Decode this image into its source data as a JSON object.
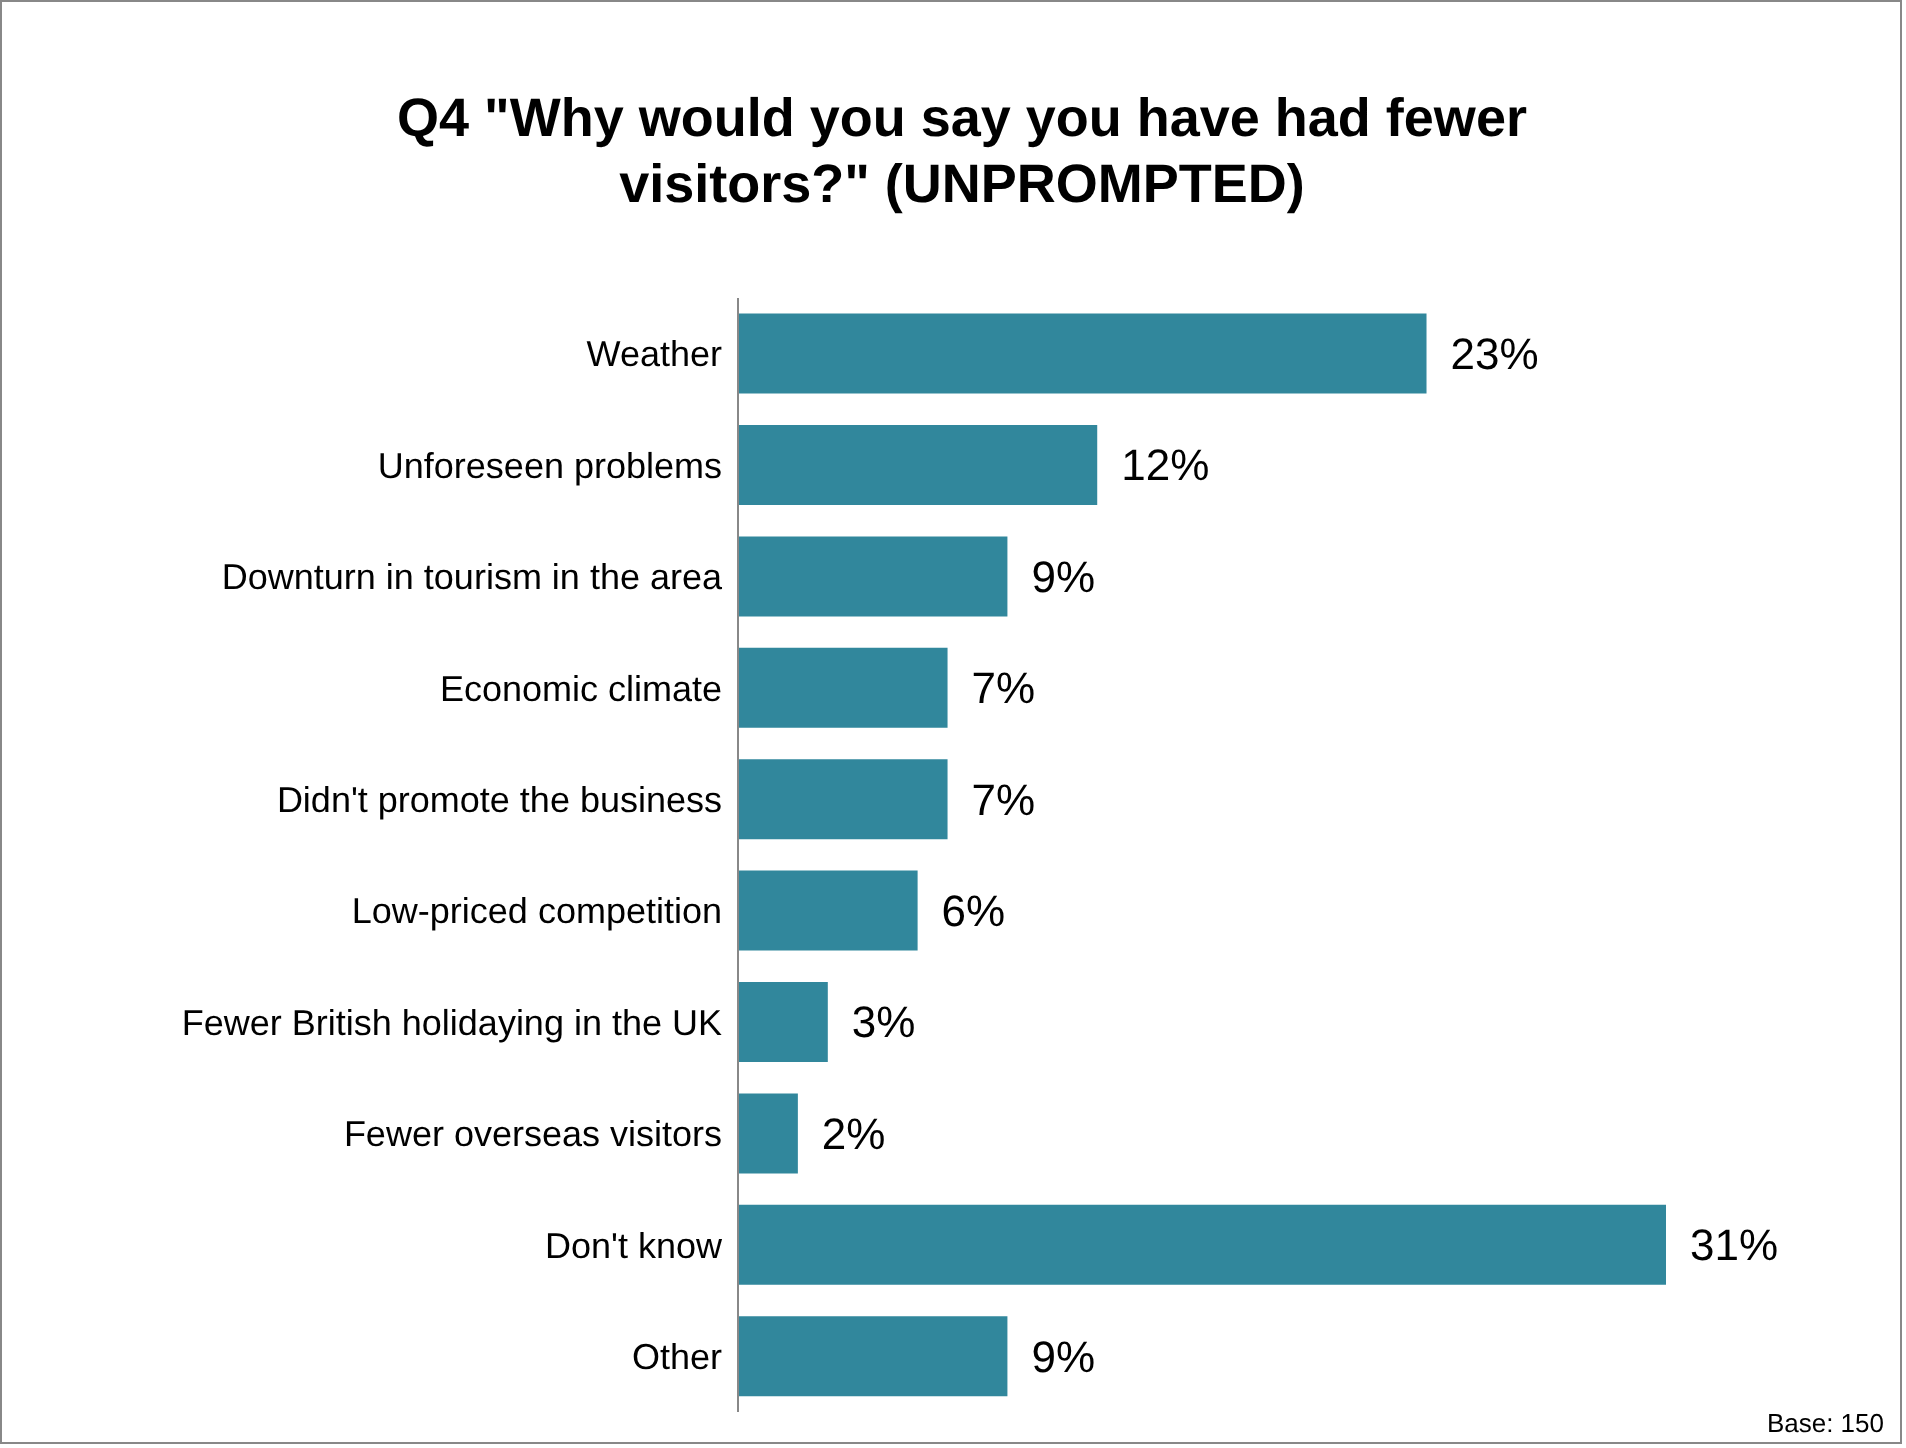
{
  "chart_data": {
    "type": "bar",
    "orientation": "horizontal",
    "title": "Q4 \"Why would you say you have had fewer visitors?\" (UNPROMPTED)",
    "categories": [
      "Weather",
      "Unforeseen problems",
      "Downturn in tourism in the area",
      "Economic climate",
      "Didn't promote the business",
      "Low-priced competition",
      "Fewer British holidaying in the UK",
      "Fewer overseas visitors",
      "Don't know",
      "Other"
    ],
    "values": [
      23,
      12,
      9,
      7,
      7,
      6,
      3,
      2,
      31,
      9
    ],
    "value_labels": [
      "23%",
      "12%",
      "9%",
      "7%",
      "7%",
      "6%",
      "3%",
      "2%",
      "31%",
      "9%"
    ],
    "color": "#31879c",
    "tick_labels": "y",
    "annotations": [
      "Base: 150"
    ]
  }
}
